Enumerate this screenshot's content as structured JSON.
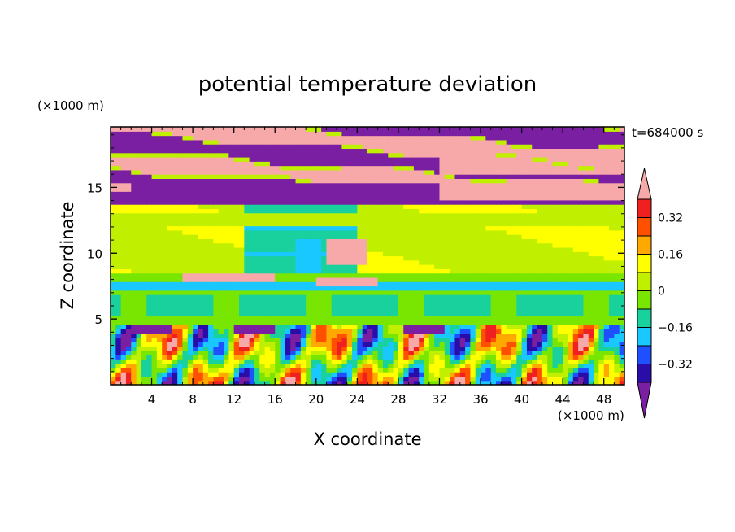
{
  "chart_data": {
    "type": "heatmap",
    "title": "potential temperature deviation",
    "time_label": "t=684000 s",
    "xlabel": "X coordinate",
    "ylabel": "Z coordinate",
    "x_unit": "(×1000 m)",
    "y_unit": "(×1000 m)",
    "xlim": [
      0,
      50
    ],
    "ylim": [
      0,
      19.6
    ],
    "x_ticks": [
      "4",
      "8",
      "12",
      "16",
      "20",
      "24",
      "28",
      "32",
      "36",
      "40",
      "44",
      "48"
    ],
    "y_ticks": [
      "5",
      "10",
      "15"
    ],
    "x_tick_values": [
      4,
      8,
      12,
      16,
      20,
      24,
      28,
      32,
      36,
      40,
      44,
      48
    ],
    "y_tick_values": [
      5,
      10,
      15
    ],
    "colorbar": {
      "levels": [
        -0.4,
        -0.32,
        -0.24,
        -0.16,
        -0.08,
        0,
        0.08,
        0.16,
        0.24,
        0.32,
        0.4
      ],
      "tick_labels": [
        "0.32",
        "0.16",
        "0",
        "−0.16",
        "−0.32"
      ],
      "tick_values": [
        0.32,
        0.16,
        0,
        -0.16,
        -0.32
      ],
      "colors": [
        "#7a1fa2",
        "#2a0ca8",
        "#1f50ff",
        "#18c8ff",
        "#19d19c",
        "#78e600",
        "#c0f000",
        "#ffff00",
        "#ffa800",
        "#ff5000",
        "#f02020",
        "#f7a8a8"
      ],
      "extend": "both"
    },
    "bands": [
      {
        "z_range": [
          15,
          19.6
        ],
        "description_values": "alternating",
        "values": [
          0.4,
          -0.4
        ]
      },
      {
        "z_range": [
          13.5,
          15
        ],
        "values": [
          -0.4
        ]
      },
      {
        "z_range": [
          8,
          13.5
        ],
        "values": [
          0.04,
          -0.12,
          0.0
        ]
      },
      {
        "z_range": [
          4.5,
          8
        ],
        "values": [
          0.02,
          -0.1
        ]
      },
      {
        "z_range": [
          0,
          4.5
        ],
        "values": [
          0.3,
          -0.35
        ]
      }
    ]
  }
}
